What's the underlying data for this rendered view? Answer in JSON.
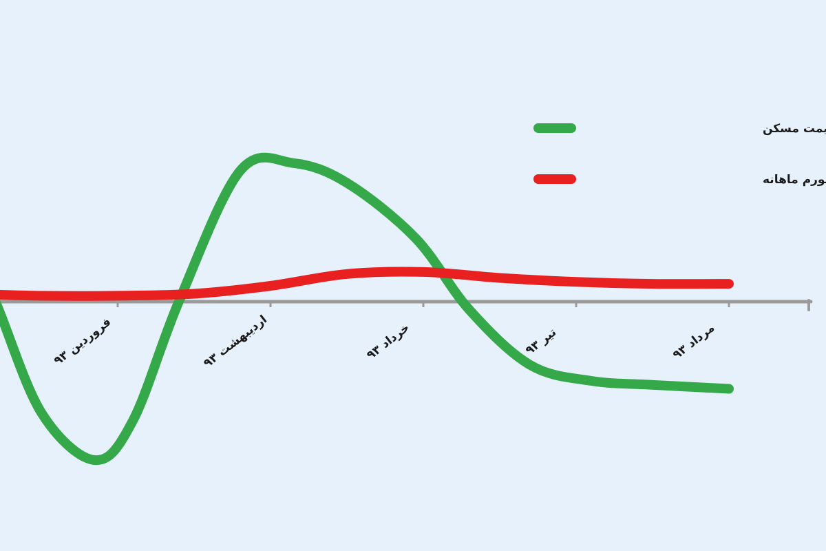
{
  "chart_data": {
    "type": "line",
    "title": "",
    "xlabel": "",
    "ylabel": "",
    "categories": [
      "فروردین ۹۳",
      "اردیبهشت ۹۳",
      "خرداد ۹۳",
      "تیر ۹۳",
      "مرداد ۹۳"
    ],
    "x_range": [
      -0.5,
      4.8
    ],
    "y_range": [
      -4.5,
      4.0
    ],
    "grid": false,
    "legend_position": "top-right",
    "series": [
      {
        "name": "نرخ رشد ماهانه قیمت مسکن",
        "color": "#35a84a",
        "x": [
          -0.5,
          -0.3,
          0.0,
          0.35,
          0.6,
          0.9,
          1.3,
          1.65,
          2.0,
          2.45,
          2.8,
          3.2,
          3.6,
          4.0,
          4.5
        ],
        "y": [
          1.6,
          0.0,
          -2.8,
          -4.0,
          -3.0,
          0.0,
          3.3,
          3.5,
          3.0,
          1.6,
          -0.2,
          -1.6,
          -2.0,
          -2.1,
          -2.2
        ]
      },
      {
        "name": "نرخ تورم ماهانه",
        "color": "#e8201f",
        "x": [
          -0.5,
          0.0,
          0.5,
          1.0,
          1.5,
          2.0,
          2.5,
          3.0,
          3.5,
          4.0,
          4.5
        ],
        "y": [
          0.2,
          0.15,
          0.15,
          0.2,
          0.4,
          0.7,
          0.75,
          0.6,
          0.5,
          0.45,
          0.45
        ]
      }
    ]
  }
}
